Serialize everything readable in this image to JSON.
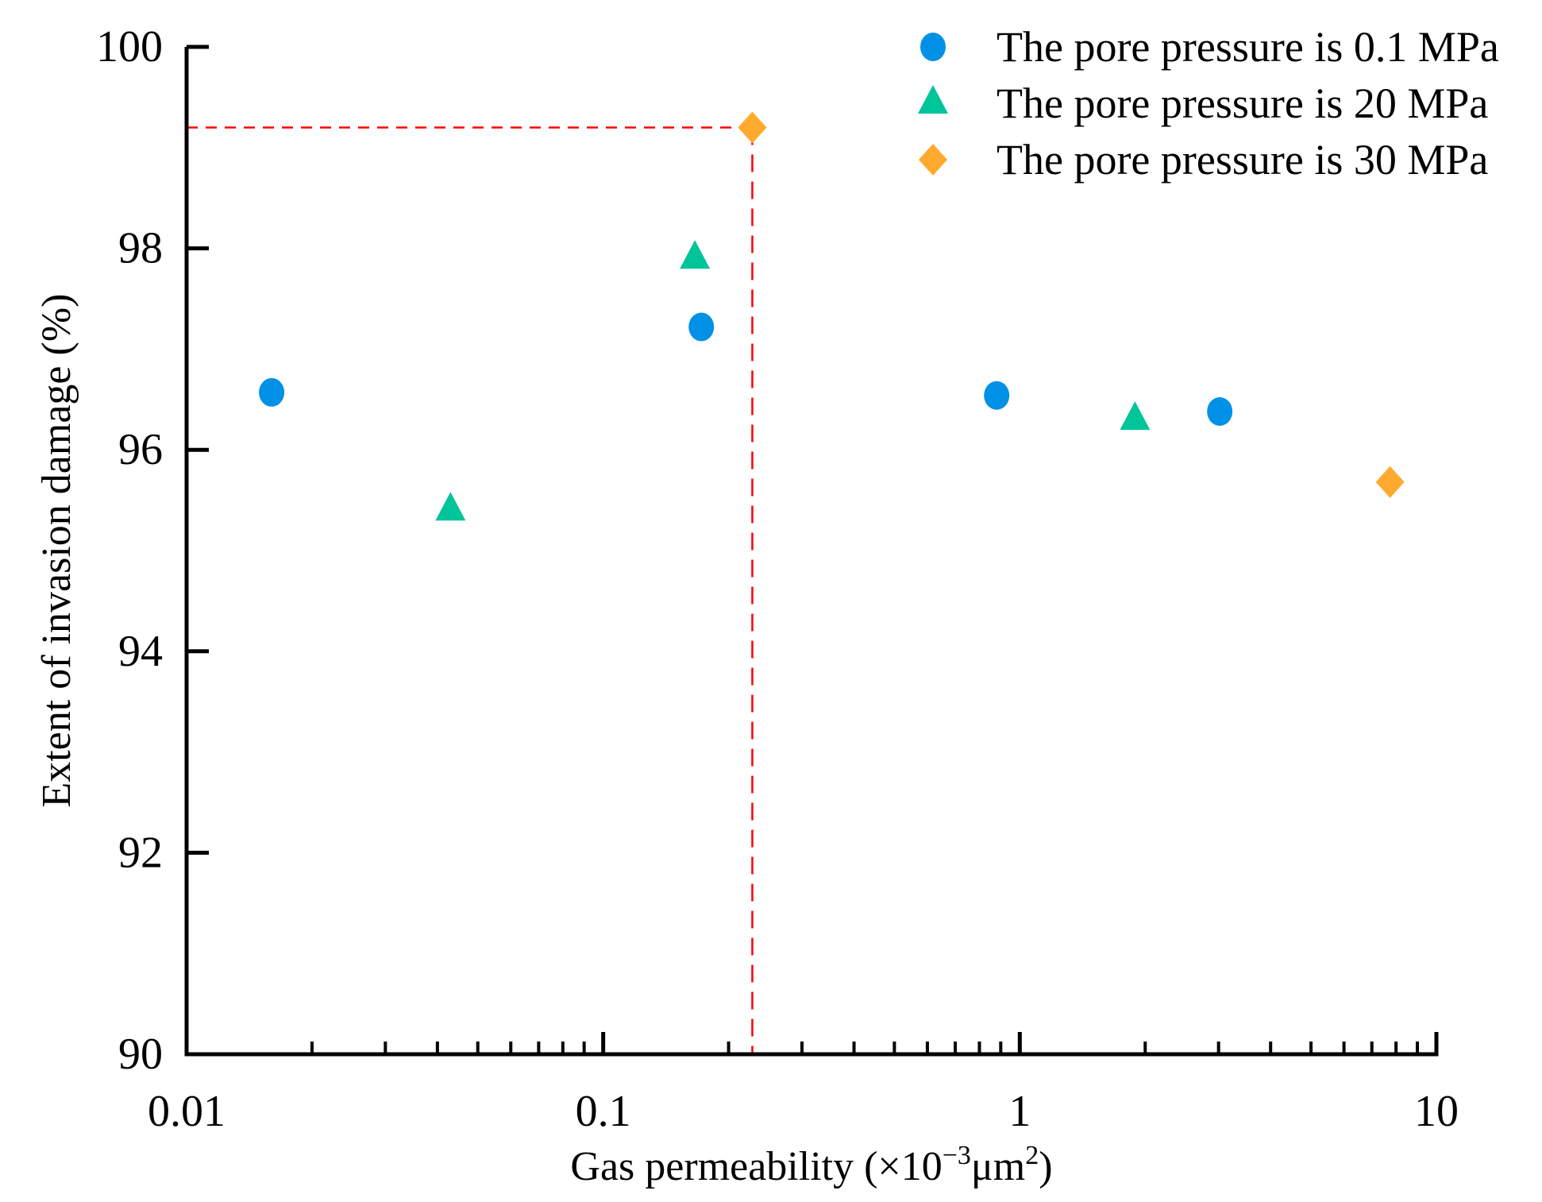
{
  "chart_data": {
    "type": "scatter",
    "xlabel_main": "Gas permeability (×10",
    "xlabel_exp": "−3",
    "xlabel_unit": "μm",
    "xlabel_unit_exp": "2",
    "xlabel_close": ")",
    "ylabel": "Extent of invasion damage (%)",
    "xscale": "log",
    "xlim": [
      0.01,
      10
    ],
    "ylim": [
      90,
      100
    ],
    "xticks": [
      "0.01",
      "0.1",
      "1",
      "10"
    ],
    "yticks": [
      "90",
      "92",
      "94",
      "96",
      "98",
      "100"
    ],
    "grid": false,
    "legend_position": "top-right",
    "series": [
      {
        "name": "The pore pressure is 0.1 MPa",
        "marker": "circle",
        "color": "#0091E6",
        "x": [
          0.016,
          0.172,
          0.88,
          3.02
        ],
        "y": [
          96.57,
          97.22,
          96.54,
          96.38
        ]
      },
      {
        "name": "The pore pressure is 20 MPa",
        "marker": "triangle",
        "color": "#00C49A",
        "x": [
          0.043,
          0.166,
          1.89
        ],
        "y": [
          95.4,
          97.9,
          96.3
        ]
      },
      {
        "name": "The pore pressure is 30 MPa",
        "marker": "diamond",
        "color": "#FFAA2E",
        "x": [
          0.228,
          7.74
        ],
        "y": [
          99.2,
          95.68
        ]
      }
    ],
    "reference_lines": {
      "x": 0.228,
      "y": 99.2,
      "color": "#FF0000",
      "style": "dashed"
    }
  }
}
